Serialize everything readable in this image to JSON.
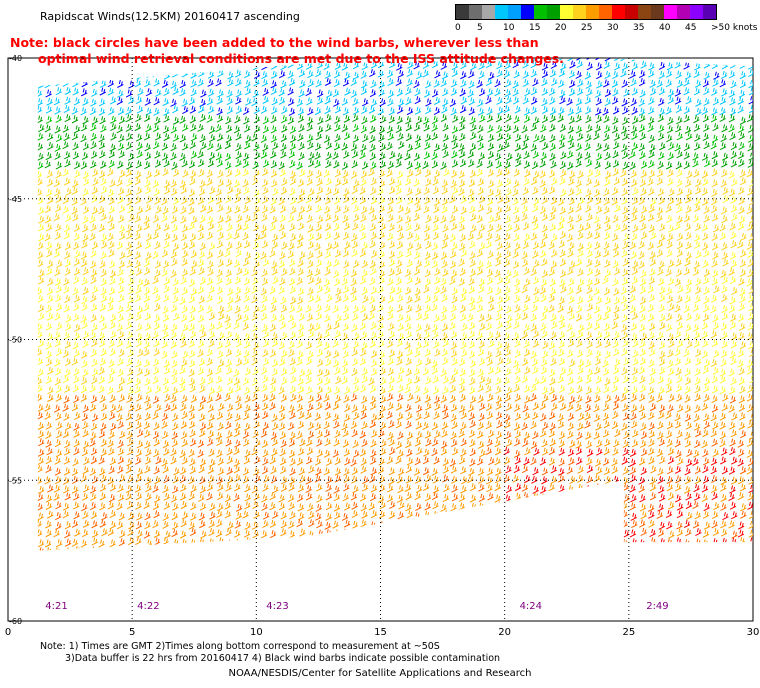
{
  "title": "Rapidscat Winds(12.5KM) 20160417 ascending",
  "note_lines": [
    "Note: black circles have been added to the wind barbs, wherever less than",
    "optimal wind retrieval conditions are met due to the ISS attitude changes."
  ],
  "legend": {
    "ticks": [
      "0",
      "5",
      "10",
      "15",
      "20",
      "25",
      "30",
      "35",
      "40",
      "45",
      ">50 knots"
    ],
    "colors": [
      "#3a3a3a",
      "#6e6e6e",
      "#a8a8a8",
      "#00c8ff",
      "#00a0ff",
      "#0000ff",
      "#00c000",
      "#00a000",
      "#ffff33",
      "#ffd21e",
      "#ff9c00",
      "#ff6400",
      "#ff0000",
      "#c80000",
      "#8b4513",
      "#6b3a1e",
      "#ff00ff",
      "#b400b4",
      "#8c00ff",
      "#5a00b4"
    ]
  },
  "chart_data": {
    "type": "map",
    "x_axis": {
      "min": 0,
      "max": 30,
      "ticks": [
        0,
        5,
        10,
        15,
        20,
        25,
        30
      ]
    },
    "y_axis": {
      "min": -60,
      "max": -40,
      "ticks": [
        -40,
        -45,
        -50,
        -55,
        -60
      ]
    },
    "y_tick_labels": [
      "-40",
      "-45",
      "-50",
      "-55",
      "-60"
    ],
    "grid": true,
    "time_labels": [
      {
        "lon": 1.5,
        "text": "4:21"
      },
      {
        "lon": 5.2,
        "text": "4:22"
      },
      {
        "lon": 10.4,
        "text": "4:23"
      },
      {
        "lon": 20.6,
        "text": "4:24"
      },
      {
        "lon": 25.7,
        "text": "2:49"
      }
    ],
    "swath": {
      "outline_lon": [
        1.2,
        12,
        24,
        30,
        30,
        24.8,
        24.8,
        12,
        1.2
      ],
      "outline_lat": [
        -41,
        -40.2,
        -40.0,
        -40.3,
        -57.2,
        -57.2,
        -55.0,
        -57.0,
        -57.5
      ]
    },
    "color_zones_by_latitude": [
      {
        "lat_from": -40,
        "lat_to": -42,
        "color": "#00c8ff"
      },
      {
        "lat_from": -42,
        "lat_to": -44,
        "color": "#00a000"
      },
      {
        "lat_from": -44,
        "lat_to": -48,
        "color": "#ffd21e"
      },
      {
        "lat_from": -48,
        "lat_to": -52,
        "color": "#ffff33"
      },
      {
        "lat_from": -52,
        "lat_to": -57.5,
        "color": "#ff9c00"
      }
    ]
  },
  "footnote_lines": [
    "Note: 1) Times are GMT 2)Times along bottom correspond to measurement at ~50S",
    "3)Data buffer is 22 hrs from 20160417 4) Black wind barbs indicate possible contamination"
  ],
  "credit": "NOAA/NESDIS/Center for Satellite Applications and Research"
}
